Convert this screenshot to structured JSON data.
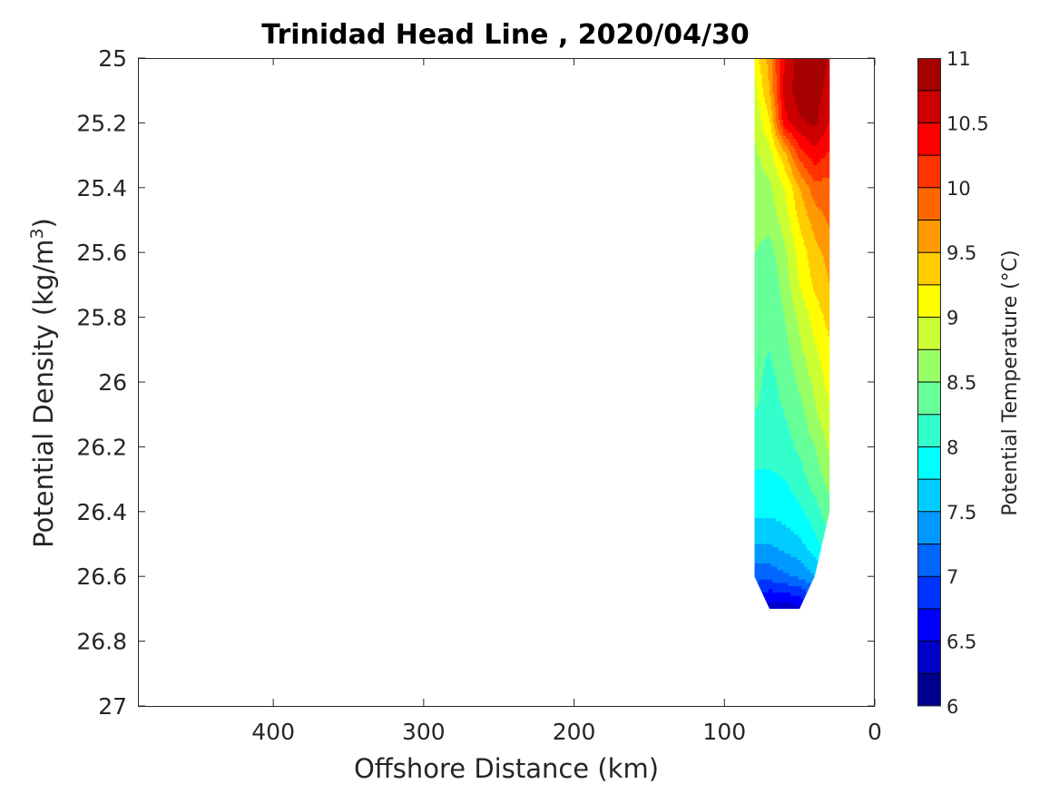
{
  "chart_data": {
    "type": "heatmap",
    "title": "Trinidad Head Line , 2020/04/30",
    "xlabel": "Offshore Distance (km)",
    "ylabel_main": "Potential Density (kg/m",
    "ylabel_sup": "3",
    "ylabel_end": ")",
    "xlim": [
      490,
      0
    ],
    "x_direction": "reversed",
    "ylim": [
      25,
      27
    ],
    "y_direction": "reversed",
    "x_ticks": [
      400,
      300,
      200,
      100,
      0
    ],
    "y_ticks": [
      25,
      25.2,
      25.4,
      25.6,
      25.8,
      26,
      26.2,
      26.4,
      26.6,
      26.8,
      27
    ],
    "grid": false,
    "colorbar": {
      "label": "Potential Temperature (°C)",
      "min": 6,
      "max": 11,
      "step": 0.25,
      "ticks": [
        6,
        6.5,
        7,
        7.5,
        8,
        8.5,
        9,
        9.5,
        10,
        10.5,
        11
      ],
      "colormap": "jet",
      "colors": [
        "#00008f",
        "#0000c8",
        "#0000ff",
        "#0033ff",
        "#0066ff",
        "#0099ff",
        "#00ccff",
        "#00ffff",
        "#33ffcc",
        "#66ff99",
        "#99ff66",
        "#ccff33",
        "#ffff00",
        "#ffcc00",
        "#ff9900",
        "#ff6600",
        "#ff3300",
        "#ff0000",
        "#cc0000",
        "#a50000"
      ]
    },
    "distance_km": [
      80,
      70,
      60,
      50,
      40,
      30
    ],
    "density": [
      25,
      25.1,
      25.2,
      25.3,
      25.4,
      25.5,
      25.6,
      25.7,
      25.8,
      25.9,
      26,
      26.1,
      26.2,
      26.3,
      26.4,
      26.5,
      26.6,
      26.7
    ],
    "temperature_rows": [
      [
        9.1,
        9.6,
        10.5,
        10.9,
        11.0,
        10.7
      ],
      [
        8.9,
        9.5,
        10.6,
        10.9,
        10.9,
        10.6
      ],
      [
        8.8,
        9.2,
        10.4,
        10.7,
        10.8,
        10.5
      ],
      [
        8.7,
        8.9,
        9.4,
        10.1,
        10.4,
        10.2
      ],
      [
        8.6,
        8.7,
        9.0,
        9.5,
        9.9,
        9.9
      ],
      [
        8.6,
        8.6,
        8.85,
        9.3,
        9.6,
        9.8
      ],
      [
        8.5,
        8.4,
        8.7,
        9.1,
        9.4,
        9.6
      ],
      [
        8.4,
        8.3,
        8.6,
        9.0,
        9.3,
        9.5
      ],
      [
        8.35,
        8.3,
        8.5,
        8.8,
        9.1,
        9.35
      ],
      [
        8.3,
        8.25,
        8.4,
        8.7,
        8.95,
        9.2
      ],
      [
        8.3,
        8.2,
        8.3,
        8.55,
        8.8,
        9.1
      ],
      [
        8.25,
        8.2,
        8.25,
        8.4,
        8.7,
        8.95
      ],
      [
        8.1,
        8.1,
        8.15,
        8.3,
        8.5,
        8.8
      ],
      [
        7.95,
        7.95,
        8.0,
        8.15,
        8.35,
        8.6
      ],
      [
        7.8,
        7.8,
        7.85,
        7.95,
        8.15,
        8.4
      ],
      [
        7.5,
        7.5,
        7.6,
        7.7,
        7.9,
        8.2
      ],
      [
        7.1,
        7.1,
        7.2,
        7.3,
        7.5,
        7.8
      ],
      [
        6.5,
        6.3,
        6.3,
        6.4,
        6.7,
        7.1
      ]
    ],
    "deepest_sample_density_by_column": [
      26.6,
      26.7,
      26.7,
      26.7,
      26.6,
      26.4
    ]
  }
}
